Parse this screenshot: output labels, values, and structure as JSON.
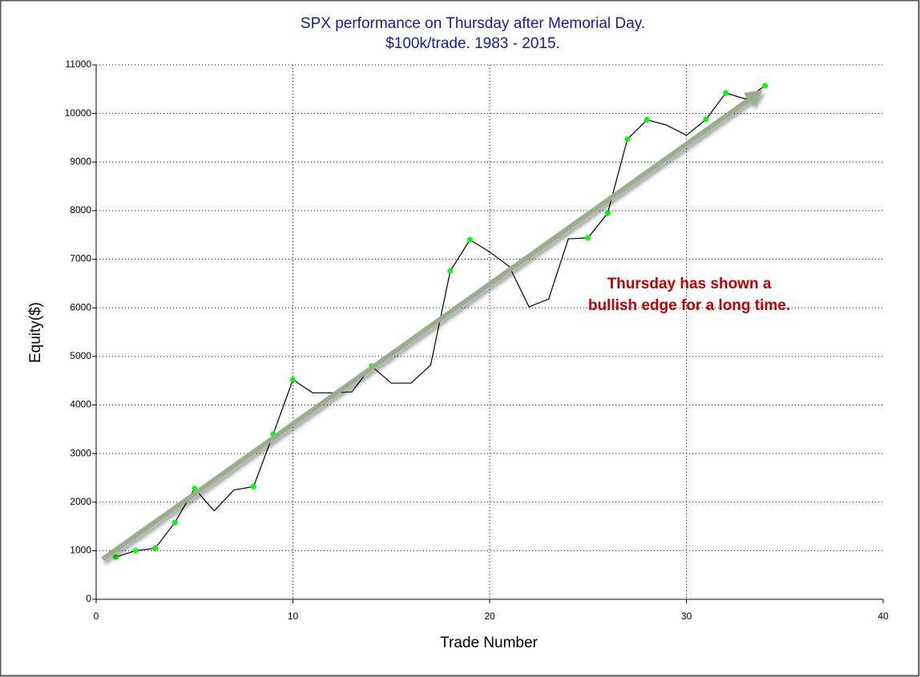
{
  "chart_data": {
    "type": "line",
    "title": "SPX performance on Thursday after Memorial Day.",
    "subtitle": "$100k/trade. 1983 - 2015.",
    "x_label": "Trade Number",
    "y_label": "Equity($)",
    "annotation": [
      "Thursday has shown a",
      "bullish edge for a long time."
    ],
    "x": [
      1,
      2,
      3,
      4,
      5,
      6,
      7,
      8,
      9,
      10,
      11,
      12,
      13,
      14,
      15,
      16,
      17,
      18,
      19,
      20,
      21,
      22,
      23,
      24,
      25,
      26,
      27,
      28,
      29,
      30,
      31,
      32,
      33,
      34
    ],
    "series": [
      {
        "color": "#000000",
        "marker_color": "#00ff00",
        "values": [
          870,
          1000,
          1050,
          1580,
          2280,
          1820,
          2250,
          2320,
          3400,
          4520,
          4250,
          4250,
          4270,
          4800,
          4450,
          4450,
          4820,
          6760,
          7400,
          7150,
          6850,
          6020,
          6180,
          7420,
          7440,
          7950,
          9470,
          9870,
          9760,
          9550,
          9880,
          10420,
          10300,
          10570
        ],
        "markers": [
          true,
          true,
          true,
          true,
          true,
          false,
          false,
          true,
          true,
          true,
          false,
          false,
          false,
          true,
          false,
          false,
          false,
          true,
          true,
          false,
          false,
          false,
          false,
          false,
          true,
          true,
          true,
          true,
          false,
          false,
          true,
          true,
          false,
          true
        ]
      }
    ],
    "xlim": [
      0,
      40
    ],
    "xticks": [
      0,
      10,
      20,
      30,
      40
    ],
    "ylim": [
      0,
      11000
    ],
    "yticks": [
      0,
      1000,
      2000,
      3000,
      4000,
      5000,
      6000,
      7000,
      8000,
      9000,
      10000,
      11000
    ],
    "grid": true
  }
}
